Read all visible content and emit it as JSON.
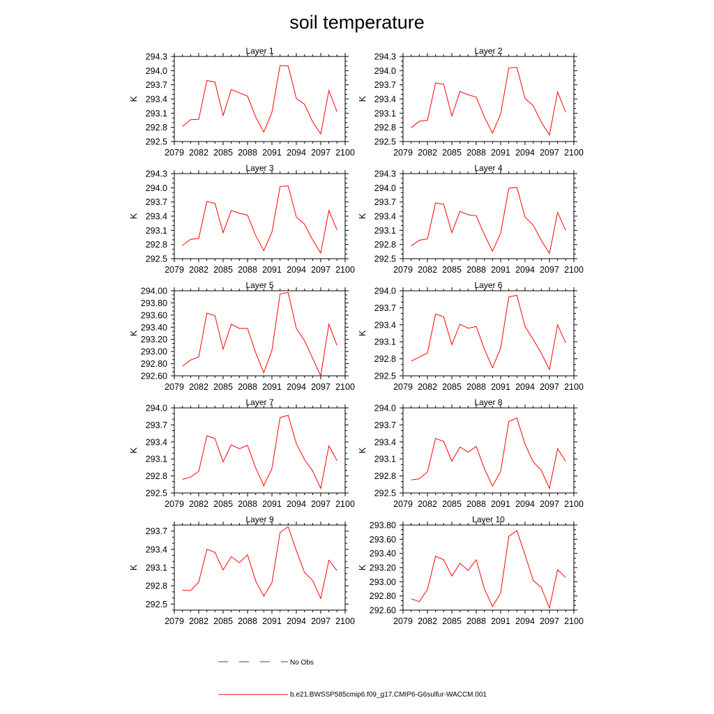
{
  "title": "soil temperature",
  "legend": [
    {
      "label": "No Obs",
      "color": "#3333aa",
      "dash": "dashed"
    },
    {
      "label": "b.e21.BWSSP585cmip6.f09_g17.CMIP6-G6sulfur-WACCM.001",
      "color": "#ff0000",
      "dash": "solid"
    }
  ],
  "chart_data": [
    {
      "type": "line",
      "title": "Layer 1",
      "xlabel": "",
      "ylabel": "K",
      "xlim": [
        2079,
        2100
      ],
      "ylim": [
        292.5,
        294.3
      ],
      "x_ticks": [
        2079,
        2082,
        2085,
        2088,
        2091,
        2094,
        2097,
        2100
      ],
      "y_ticks": [
        "292.5",
        "292.8",
        "293.1",
        "293.4",
        "293.7",
        "294.0",
        "294.3"
      ],
      "x": [
        2080,
        2081,
        2082,
        2083,
        2084,
        2085,
        2086,
        2087,
        2088,
        2089,
        2090,
        2091,
        2092,
        2093,
        2094,
        2095,
        2096,
        2097,
        2098,
        2099
      ],
      "series": [
        {
          "name": "b.e21.BWSSP585cmip6.f09_g17.CMIP6-G6sulfur-WACCM.001",
          "color": "#ff0000",
          "values": [
            292.82,
            292.96,
            292.97,
            293.79,
            293.76,
            293.05,
            293.6,
            293.53,
            293.46,
            293.02,
            292.7,
            293.12,
            294.11,
            294.1,
            293.41,
            293.29,
            292.92,
            292.66,
            293.58,
            293.13
          ]
        }
      ]
    },
    {
      "type": "line",
      "title": "Layer 2",
      "xlabel": "",
      "ylabel": "K",
      "xlim": [
        2079,
        2100
      ],
      "ylim": [
        292.5,
        294.3
      ],
      "x_ticks": [
        2079,
        2082,
        2085,
        2088,
        2091,
        2094,
        2097,
        2100
      ],
      "y_ticks": [
        "292.5",
        "292.8",
        "293.1",
        "293.4",
        "293.7",
        "294.0",
        "294.3"
      ],
      "x": [
        2080,
        2081,
        2082,
        2083,
        2084,
        2085,
        2086,
        2087,
        2088,
        2089,
        2090,
        2091,
        2092,
        2093,
        2094,
        2095,
        2096,
        2097,
        2098,
        2099
      ],
      "series": [
        {
          "name": "b.e21.BWSSP585cmip6.f09_g17.CMIP6-G6sulfur-WACCM.001",
          "color": "#ff0000",
          "values": [
            292.79,
            292.93,
            292.95,
            293.74,
            293.71,
            293.04,
            293.56,
            293.49,
            293.44,
            293.02,
            292.68,
            293.08,
            294.06,
            294.07,
            293.41,
            293.26,
            292.91,
            292.64,
            293.55,
            293.12
          ]
        }
      ]
    },
    {
      "type": "line",
      "title": "Layer 3",
      "xlabel": "",
      "ylabel": "K",
      "xlim": [
        2079,
        2100
      ],
      "ylim": [
        292.5,
        294.3
      ],
      "x_ticks": [
        2079,
        2082,
        2085,
        2088,
        2091,
        2094,
        2097,
        2100
      ],
      "y_ticks": [
        "292.5",
        "292.8",
        "293.1",
        "293.4",
        "293.7",
        "294.0",
        "294.3"
      ],
      "x": [
        2080,
        2081,
        2082,
        2083,
        2084,
        2085,
        2086,
        2087,
        2088,
        2089,
        2090,
        2091,
        2092,
        2093,
        2094,
        2095,
        2096,
        2097,
        2098,
        2099
      ],
      "series": [
        {
          "name": "b.e21.BWSSP585cmip6.f09_g17.CMIP6-G6sulfur-WACCM.001",
          "color": "#ff0000",
          "values": [
            292.78,
            292.91,
            292.93,
            293.71,
            293.67,
            293.05,
            293.52,
            293.46,
            293.42,
            292.99,
            292.67,
            293.06,
            294.03,
            294.04,
            293.38,
            293.23,
            292.9,
            292.62,
            293.52,
            293.11
          ]
        }
      ]
    },
    {
      "type": "line",
      "title": "Layer 4",
      "xlabel": "",
      "ylabel": "K",
      "xlim": [
        2079,
        2100
      ],
      "ylim": [
        292.5,
        294.3
      ],
      "x_ticks": [
        2079,
        2082,
        2085,
        2088,
        2091,
        2094,
        2097,
        2100
      ],
      "y_ticks": [
        "292.5",
        "292.8",
        "293.1",
        "293.4",
        "293.7",
        "294.0",
        "294.3"
      ],
      "x": [
        2080,
        2081,
        2082,
        2083,
        2084,
        2085,
        2086,
        2087,
        2088,
        2089,
        2090,
        2091,
        2092,
        2093,
        2094,
        2095,
        2096,
        2097,
        2098,
        2099
      ],
      "series": [
        {
          "name": "b.e21.BWSSP585cmip6.f09_g17.CMIP6-G6sulfur-WACCM.001",
          "color": "#ff0000",
          "values": [
            292.77,
            292.89,
            292.92,
            293.68,
            293.65,
            293.05,
            293.5,
            293.43,
            293.41,
            293.01,
            292.66,
            293.04,
            293.99,
            294.01,
            293.38,
            293.21,
            292.89,
            292.61,
            293.48,
            293.1
          ]
        }
      ]
    },
    {
      "type": "line",
      "title": "Layer 5",
      "xlabel": "",
      "ylabel": "K",
      "xlim": [
        2079,
        2100
      ],
      "ylim": [
        292.6,
        294.0
      ],
      "x_ticks": [
        2079,
        2082,
        2085,
        2088,
        2091,
        2094,
        2097,
        2100
      ],
      "y_ticks": [
        "292.60",
        "292.80",
        "293.00",
        "293.20",
        "293.40",
        "293.60",
        "293.80",
        "294.00"
      ],
      "x": [
        2080,
        2081,
        2082,
        2083,
        2084,
        2085,
        2086,
        2087,
        2088,
        2089,
        2090,
        2091,
        2092,
        2093,
        2094,
        2095,
        2096,
        2097,
        2098,
        2099
      ],
      "series": [
        {
          "name": "b.e21.BWSSP585cmip6.f09_g17.CMIP6-G6sulfur-WACCM.001",
          "color": "#ff0000",
          "values": [
            292.76,
            292.86,
            292.91,
            293.63,
            293.59,
            293.04,
            293.45,
            293.38,
            293.38,
            292.98,
            292.65,
            293.02,
            293.95,
            293.97,
            293.38,
            293.18,
            292.89,
            292.6,
            293.45,
            293.1
          ]
        }
      ]
    },
    {
      "type": "line",
      "title": "Layer 6",
      "xlabel": "",
      "ylabel": "K",
      "xlim": [
        2079,
        2100
      ],
      "ylim": [
        292.5,
        294.0
      ],
      "x_ticks": [
        2079,
        2082,
        2085,
        2088,
        2091,
        2094,
        2097,
        2100
      ],
      "y_ticks": [
        "292.5",
        "292.8",
        "293.1",
        "293.4",
        "293.7",
        "294.0"
      ],
      "x": [
        2080,
        2081,
        2082,
        2083,
        2084,
        2085,
        2086,
        2087,
        2088,
        2089,
        2090,
        2091,
        2092,
        2093,
        2094,
        2095,
        2096,
        2097,
        2098,
        2099
      ],
      "series": [
        {
          "name": "b.e21.BWSSP585cmip6.f09_g17.CMIP6-G6sulfur-WACCM.001",
          "color": "#ff0000",
          "values": [
            292.76,
            292.83,
            292.9,
            293.59,
            293.54,
            293.05,
            293.41,
            293.34,
            293.37,
            292.97,
            292.64,
            292.99,
            293.89,
            293.92,
            293.37,
            293.14,
            292.9,
            292.61,
            293.4,
            293.08
          ]
        }
      ]
    },
    {
      "type": "line",
      "title": "Layer 7",
      "xlabel": "",
      "ylabel": "K",
      "xlim": [
        2079,
        2100
      ],
      "ylim": [
        292.5,
        294.0
      ],
      "x_ticks": [
        2079,
        2082,
        2085,
        2088,
        2091,
        2094,
        2097,
        2100
      ],
      "y_ticks": [
        "292.5",
        "292.8",
        "293.1",
        "293.4",
        "293.7",
        "294.0"
      ],
      "x": [
        2080,
        2081,
        2082,
        2083,
        2084,
        2085,
        2086,
        2087,
        2088,
        2089,
        2090,
        2091,
        2092,
        2093,
        2094,
        2095,
        2096,
        2097,
        2098,
        2099
      ],
      "series": [
        {
          "name": "b.e21.BWSSP585cmip6.f09_g17.CMIP6-G6sulfur-WACCM.001",
          "color": "#ff0000",
          "values": [
            292.74,
            292.78,
            292.88,
            293.51,
            293.46,
            293.05,
            293.35,
            293.28,
            293.34,
            292.94,
            292.63,
            292.93,
            293.83,
            293.87,
            293.37,
            293.09,
            292.89,
            292.58,
            293.33,
            293.07
          ]
        }
      ]
    },
    {
      "type": "line",
      "title": "Layer 8",
      "xlabel": "",
      "ylabel": "K",
      "xlim": [
        2079,
        2100
      ],
      "ylim": [
        292.5,
        294.0
      ],
      "x_ticks": [
        2079,
        2082,
        2085,
        2088,
        2091,
        2094,
        2097,
        2100
      ],
      "y_ticks": [
        "292.5",
        "292.8",
        "293.1",
        "293.4",
        "293.7",
        "294.0"
      ],
      "x": [
        2080,
        2081,
        2082,
        2083,
        2084,
        2085,
        2086,
        2087,
        2088,
        2089,
        2090,
        2091,
        2092,
        2093,
        2094,
        2095,
        2096,
        2097,
        2098,
        2099
      ],
      "series": [
        {
          "name": "b.e21.BWSSP585cmip6.f09_g17.CMIP6-G6sulfur-WACCM.001",
          "color": "#ff0000",
          "values": [
            292.73,
            292.75,
            292.87,
            293.46,
            293.41,
            293.06,
            293.31,
            293.22,
            293.32,
            292.93,
            292.62,
            292.88,
            293.76,
            293.82,
            293.36,
            293.05,
            292.9,
            292.58,
            293.28,
            293.06
          ]
        }
      ]
    },
    {
      "type": "line",
      "title": "Layer 9",
      "xlabel": "",
      "ylabel": "K",
      "xlim": [
        2079,
        2100
      ],
      "ylim": [
        292.4,
        293.8
      ],
      "x_ticks": [
        2079,
        2082,
        2085,
        2088,
        2091,
        2094,
        2097,
        2100
      ],
      "y_ticks": [
        "292.5",
        "292.8",
        "293.1",
        "293.4",
        "293.7"
      ],
      "x": [
        2080,
        2081,
        2082,
        2083,
        2084,
        2085,
        2086,
        2087,
        2088,
        2089,
        2090,
        2091,
        2092,
        2093,
        2094,
        2095,
        2096,
        2097,
        2098,
        2099
      ],
      "series": [
        {
          "name": "b.e21.BWSSP585cmip6.f09_g17.CMIP6-G6sulfur-WACCM.001",
          "color": "#ff0000",
          "values": [
            292.73,
            292.72,
            292.86,
            293.4,
            293.35,
            293.06,
            293.28,
            293.18,
            293.31,
            292.88,
            292.63,
            292.85,
            293.68,
            293.77,
            293.38,
            293.02,
            292.89,
            292.59,
            293.22,
            293.05
          ]
        }
      ]
    },
    {
      "type": "line",
      "title": "Layer 10",
      "xlabel": "",
      "ylabel": "K",
      "xlim": [
        2079,
        2100
      ],
      "ylim": [
        292.6,
        293.8
      ],
      "x_ticks": [
        2079,
        2082,
        2085,
        2088,
        2091,
        2094,
        2097,
        2100
      ],
      "y_ticks": [
        "292.60",
        "292.80",
        "293.00",
        "293.20",
        "293.40",
        "293.60",
        "293.80"
      ],
      "x": [
        2080,
        2081,
        2082,
        2083,
        2084,
        2085,
        2086,
        2087,
        2088,
        2089,
        2090,
        2091,
        2092,
        2093,
        2094,
        2095,
        2096,
        2097,
        2098,
        2099
      ],
      "series": [
        {
          "name": "b.e21.BWSSP585cmip6.f09_g17.CMIP6-G6sulfur-WACCM.001",
          "color": "#ff0000",
          "values": [
            292.76,
            292.72,
            292.89,
            293.36,
            293.31,
            293.08,
            293.26,
            293.16,
            293.31,
            292.9,
            292.65,
            292.84,
            293.64,
            293.72,
            293.38,
            293.02,
            292.92,
            292.63,
            293.17,
            293.06
          ]
        }
      ]
    }
  ]
}
